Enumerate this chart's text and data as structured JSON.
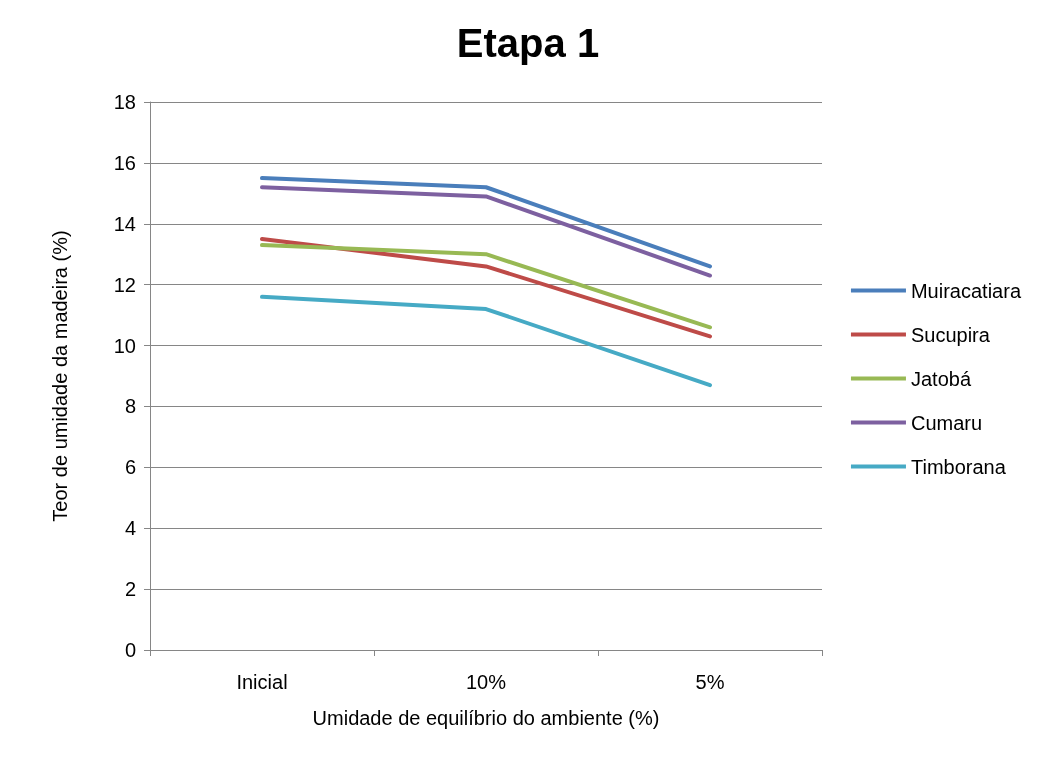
{
  "chart_data": {
    "type": "line",
    "title": "Etapa 1",
    "xlabel": "Umidade de equilíbrio do ambiente (%)",
    "ylabel": "Teor de umidade da madeira (%)",
    "categories": [
      "Inicial",
      "10%",
      "5%"
    ],
    "series": [
      {
        "name": "Muiracatiara",
        "color": "#4a7ebb",
        "values": [
          15.5,
          15.2,
          12.6
        ]
      },
      {
        "name": "Sucupira",
        "color": "#be4b48",
        "values": [
          13.5,
          12.6,
          10.3
        ]
      },
      {
        "name": "Jatobá",
        "color": "#98b954",
        "values": [
          13.3,
          13.0,
          10.6
        ]
      },
      {
        "name": "Cumaru",
        "color": "#7d60a0",
        "values": [
          15.2,
          14.9,
          12.3
        ]
      },
      {
        "name": "Timborana",
        "color": "#46aac5",
        "values": [
          11.6,
          11.2,
          8.7
        ]
      }
    ],
    "ylim": [
      0,
      18
    ],
    "yticks": [
      0,
      2,
      4,
      6,
      8,
      10,
      12,
      14,
      16,
      18
    ],
    "grid": "y",
    "legend": "right",
    "marker": "none",
    "line_style": "solid"
  }
}
